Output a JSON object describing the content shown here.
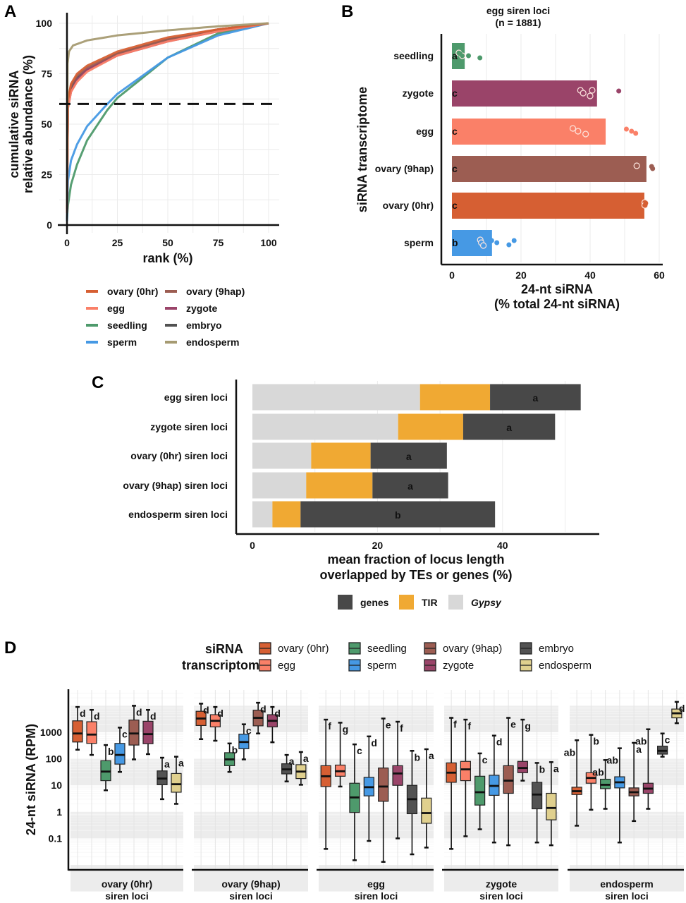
{
  "colors": {
    "ovary (0hr)": "#d65f33",
    "egg": "#fa8068",
    "seedling": "#4e9a6c",
    "sperm": "#4699e4",
    "ovary (9hap)": "#9c5d52",
    "zygote": "#9a4469",
    "embryo": "#525252",
    "endosperm": "#a69b72",
    "endosperm_box": "#e0d08e",
    "genes": "#484848",
    "TIR": "#f0a933",
    "Gypsy": "#d8d8d8"
  },
  "chart_data": [
    {
      "panel": "A",
      "type": "line",
      "title": "",
      "xlabel": "rank (%)",
      "ylabel": "cumulative siRNA relative abundance (%)",
      "ylabel_lines": [
        "cumulative siRNA",
        "relative abundance (%)"
      ],
      "xlim": [
        0,
        100
      ],
      "ylim": [
        0,
        100
      ],
      "xticks": [
        0,
        25,
        50,
        75,
        100
      ],
      "yticks": [
        0,
        25,
        50,
        75,
        100
      ],
      "grid": true,
      "reference_line": {
        "y": 60,
        "style": "dashed"
      },
      "legend_position": "bottom",
      "series": [
        {
          "name": "ovary (0hr)",
          "x": [
            0,
            0.5,
            2,
            5,
            10,
            25,
            50,
            75,
            100
          ],
          "y": [
            8,
            62,
            70,
            75,
            79,
            86,
            93,
            97,
            100
          ]
        },
        {
          "name": "egg",
          "x": [
            0,
            0.5,
            2,
            5,
            10,
            25,
            50,
            75,
            100
          ],
          "y": [
            6,
            58,
            66,
            71,
            76,
            84,
            91,
            96,
            100
          ]
        },
        {
          "name": "seedling",
          "x": [
            0,
            0.5,
            2,
            5,
            10,
            20,
            25,
            50,
            75,
            100
          ],
          "y": [
            3,
            10,
            20,
            30,
            42,
            57,
            63,
            83,
            95,
            100
          ]
        },
        {
          "name": "sperm",
          "x": [
            0,
            0.5,
            2,
            5,
            10,
            20,
            25,
            50,
            75,
            100
          ],
          "y": [
            2,
            22,
            32,
            40,
            49,
            60,
            65,
            83,
            94,
            100
          ]
        },
        {
          "name": "ovary (9hap)",
          "x": [
            0,
            0.5,
            2,
            5,
            10,
            25,
            50,
            75,
            100
          ],
          "y": [
            8,
            61,
            69,
            74,
            78,
            85,
            92,
            97,
            100
          ]
        },
        {
          "name": "zygote",
          "x": [
            0,
            0.5,
            2,
            5,
            10,
            25,
            50,
            75,
            100
          ],
          "y": [
            6,
            58,
            66,
            72,
            77,
            84,
            91,
            96,
            100
          ]
        },
        {
          "name": "embryo",
          "x": [
            0,
            0.5,
            2,
            5,
            10,
            25,
            50,
            75,
            100
          ],
          "y": [
            7,
            60,
            68,
            73,
            77,
            85,
            92,
            97,
            100
          ]
        },
        {
          "name": "endosperm",
          "x": [
            0,
            0.3,
            1,
            3,
            10,
            25,
            50,
            75,
            100
          ],
          "y": [
            10,
            80,
            86,
            89,
            91.5,
            94,
            96.5,
            98.5,
            100
          ]
        }
      ],
      "legend_entries": [
        "ovary (0hr)",
        "egg",
        "seedling",
        "sperm",
        "ovary (9hap)",
        "zygote",
        "embryo",
        "endosperm"
      ]
    },
    {
      "panel": "B",
      "type": "bar",
      "orientation": "horizontal",
      "title": "egg siren loci",
      "subtitle": "(n = 1881)",
      "xlabel": "24-nt siRNA",
      "xlabel2": "(% total 24-nt siRNA)",
      "ylabel": "siRNA transcriptome",
      "xlim": [
        0,
        60
      ],
      "xticks": [
        0,
        20,
        40,
        60
      ],
      "grid": true,
      "categories": [
        "seedling",
        "zygote",
        "egg",
        "ovary (9hap)",
        "ovary (0hr)",
        "sperm"
      ],
      "values": [
        3.7,
        42.0,
        44.5,
        56.3,
        55.7,
        11.6
      ],
      "significance": [
        "a",
        "c",
        "c",
        "c",
        "c",
        "b"
      ],
      "points": [
        {
          "open": [
            2.0,
            3.0
          ],
          "filled": [
            2.3,
            4.8,
            8.1
          ]
        },
        {
          "open": [
            37.2,
            38.0,
            40.0,
            40.6
          ],
          "filled": [
            48.3
          ]
        },
        {
          "open": [
            35.0,
            36.5,
            38.7
          ],
          "filled": [
            50.5,
            52.0,
            53.2
          ]
        },
        {
          "open": [
            53.5
          ],
          "filled": [
            57.8,
            58.1
          ]
        },
        {
          "open": [
            55.8,
            55.8
          ],
          "filled": [
            56.1,
            55.9
          ]
        },
        {
          "open": [
            8.2,
            8.5,
            9.1
          ],
          "filled": [
            11.5,
            13.0,
            16.5,
            18.0
          ]
        }
      ]
    },
    {
      "panel": "C",
      "type": "bar",
      "orientation": "horizontal",
      "stacked": true,
      "xlabel": "mean fraction of locus length",
      "xlabel2": "overlapped by TEs or genes (%)",
      "xlim": [
        0,
        52
      ],
      "xticks": [
        0,
        20,
        40
      ],
      "grid": true,
      "legend_position": "bottom",
      "categories": [
        "egg siren loci",
        "zygote siren loci",
        "ovary (0hr) siren loci",
        "ovary (9hap) siren loci",
        "endosperm siren loci"
      ],
      "series": [
        {
          "name": "Gypsy",
          "values": [
            26.8,
            23.3,
            9.4,
            8.6,
            3.2
          ]
        },
        {
          "name": "TIR",
          "values": [
            11.2,
            10.4,
            9.5,
            10.6,
            4.5
          ]
        },
        {
          "name": "genes",
          "values": [
            14.5,
            14.7,
            12.2,
            12.1,
            31.1
          ]
        }
      ],
      "significance": [
        "a",
        "a",
        "a",
        "a",
        "b"
      ],
      "legend_entries": [
        "genes",
        "TIR",
        "Gypsy"
      ]
    },
    {
      "panel": "D",
      "type": "box",
      "ylabel": "24-nt siRNA (RPM)",
      "yscale": "log10",
      "ylim": [
        0.01,
        20000
      ],
      "yticks": [
        0.1,
        1,
        10,
        100,
        1000
      ],
      "ytick_labels": [
        "0.1",
        "1",
        "10",
        "100",
        "1000"
      ],
      "legend_title": [
        "siRNA",
        "transcriptome"
      ],
      "legend_entries": [
        "ovary (0hr)",
        "egg",
        "seedling",
        "sperm",
        "ovary (9hap)",
        "zygote",
        "embryo",
        "endosperm"
      ],
      "groups": [
        "ovary (0hr)",
        "egg",
        "seedling",
        "sperm",
        "ovary (9hap)",
        "zygote",
        "embryo",
        "endosperm"
      ],
      "facets": [
        {
          "label": [
            "ovary (0hr)",
            "siren loci"
          ],
          "boxes": [
            {
              "min": 220,
              "q1": 430,
              "med": 900,
              "q3": 2700,
              "max": 9000,
              "sig": "d"
            },
            {
              "min": 140,
              "q1": 380,
              "med": 820,
              "q3": 2500,
              "max": 7000,
              "sig": "d"
            },
            {
              "min": 6.5,
              "q1": 15,
              "med": 33,
              "q3": 85,
              "max": 330,
              "sig": "b"
            },
            {
              "min": 32,
              "q1": 63,
              "med": 140,
              "q3": 380,
              "max": 1500,
              "sig": "c"
            },
            {
              "min": 95,
              "q1": 330,
              "med": 900,
              "q3": 2900,
              "max": 10000,
              "sig": "d"
            },
            {
              "min": 150,
              "q1": 370,
              "med": 850,
              "q3": 2600,
              "max": 7000,
              "sig": "d"
            },
            {
              "min": 3,
              "q1": 10.5,
              "med": 18,
              "q3": 35,
              "max": 110,
              "sig": "a"
            },
            {
              "min": 2,
              "q1": 5.5,
              "med": 11,
              "q3": 28,
              "max": 120,
              "sig": "a"
            }
          ]
        },
        {
          "label": [
            "ovary (9hap)",
            "siren loci"
          ],
          "boxes": [
            {
              "min": 550,
              "q1": 1800,
              "med": 3300,
              "q3": 6200,
              "max": 12000,
              "sig": "d"
            },
            {
              "min": 480,
              "q1": 1600,
              "med": 2700,
              "q3": 4600,
              "max": 9000,
              "sig": "d"
            },
            {
              "min": 32,
              "q1": 55,
              "med": 95,
              "q3": 170,
              "max": 380,
              "sig": "b"
            },
            {
              "min": 95,
              "q1": 240,
              "med": 430,
              "q3": 850,
              "max": 2000,
              "sig": "c"
            },
            {
              "min": 900,
              "q1": 1750,
              "med": 3500,
              "q3": 6800,
              "max": 13000,
              "sig": "d"
            },
            {
              "min": 420,
              "q1": 1600,
              "med": 2700,
              "q3": 4600,
              "max": 9000,
              "sig": "d"
            },
            {
              "min": 14,
              "q1": 27,
              "med": 40,
              "q3": 65,
              "max": 140,
              "sig": "a"
            },
            {
              "min": 10.5,
              "q1": 18,
              "med": 33,
              "q3": 60,
              "max": 180,
              "sig": "a"
            }
          ]
        },
        {
          "label": [
            "egg",
            "siren loci"
          ],
          "boxes": [
            {
              "min": 0.04,
              "q1": 9,
              "med": 22,
              "q3": 55,
              "max": 3000,
              "sig": "f"
            },
            {
              "min": 9,
              "q1": 22,
              "med": 34,
              "q3": 58,
              "max": 2300,
              "sig": "g"
            },
            {
              "min": 0.015,
              "q1": 0.95,
              "med": 3.5,
              "q3": 12,
              "max": 350,
              "sig": "c"
            },
            {
              "min": 0.08,
              "q1": 4,
              "med": 8.5,
              "q3": 20,
              "max": 700,
              "sig": "d"
            },
            {
              "min": 0.013,
              "q1": 2.5,
              "med": 9,
              "q3": 45,
              "max": 3300,
              "sig": "e"
            },
            {
              "min": 0.1,
              "q1": 10,
              "med": 28,
              "q3": 55,
              "max": 2500,
              "sig": "f"
            },
            {
              "min": 0.025,
              "q1": 0.85,
              "med": 3,
              "q3": 10,
              "max": 200,
              "sig": "b"
            },
            {
              "min": 0.045,
              "q1": 0.37,
              "med": 0.9,
              "q3": 3.3,
              "max": 230,
              "sig": "a"
            }
          ]
        },
        {
          "label": [
            "zygote",
            "siren loci"
          ],
          "boxes": [
            {
              "min": 0.04,
              "q1": 13,
              "med": 30,
              "q3": 70,
              "max": 3500,
              "sig": "f"
            },
            {
              "min": 0.12,
              "q1": 15,
              "med": 40,
              "q3": 80,
              "max": 3000,
              "sig": "f"
            },
            {
              "min": 0.22,
              "q1": 1.8,
              "med": 5.5,
              "q3": 22,
              "max": 160,
              "sig": "c"
            },
            {
              "min": 0.07,
              "q1": 4.2,
              "med": 9.5,
              "q3": 24,
              "max": 750,
              "sig": "d"
            },
            {
              "min": 0.055,
              "q1": 5,
              "med": 15,
              "q3": 55,
              "max": 3500,
              "sig": "e"
            },
            {
              "min": 15,
              "q1": 30,
              "med": 45,
              "q3": 80,
              "max": 3000,
              "sig": "g"
            },
            {
              "min": 0.07,
              "q1": 1.3,
              "med": 4.5,
              "q3": 13,
              "max": 70,
              "sig": "b"
            },
            {
              "min": 0.055,
              "q1": 0.5,
              "med": 1.4,
              "q3": 5,
              "max": 75,
              "sig": "a"
            }
          ]
        },
        {
          "label": [
            "endosperm",
            "siren loci"
          ],
          "boxes": [
            {
              "min": 0.3,
              "q1": 4.5,
              "med": 6,
              "q3": 8.5,
              "max": 500,
              "sig": "ab"
            },
            {
              "min": 1.2,
              "q1": 12,
              "med": 19,
              "q3": 30,
              "max": 800,
              "sig": "b"
            },
            {
              "min": 1.3,
              "q1": 7.5,
              "med": 10.5,
              "q3": 17,
              "max": 90,
              "sig": "ab"
            },
            {
              "min": 0.07,
              "q1": 8,
              "med": 13,
              "q3": 21,
              "max": 250,
              "sig": "ab"
            },
            {
              "min": 0.45,
              "q1": 4,
              "med": 5.5,
              "q3": 8,
              "max": 400,
              "sig": "a"
            },
            {
              "min": 1.3,
              "q1": 5,
              "med": 7.5,
              "q3": 12,
              "max": 1300,
              "sig": "ab"
            },
            {
              "min": 120,
              "q1": 150,
              "med": 200,
              "q3": 300,
              "max": 900,
              "sig": "c"
            },
            {
              "min": 2200,
              "q1": 3500,
              "med": 5200,
              "q3": 7500,
              "max": 14000,
              "sig": "d"
            }
          ]
        }
      ]
    }
  ],
  "panel_labels": [
    "A",
    "B",
    "C",
    "D"
  ]
}
